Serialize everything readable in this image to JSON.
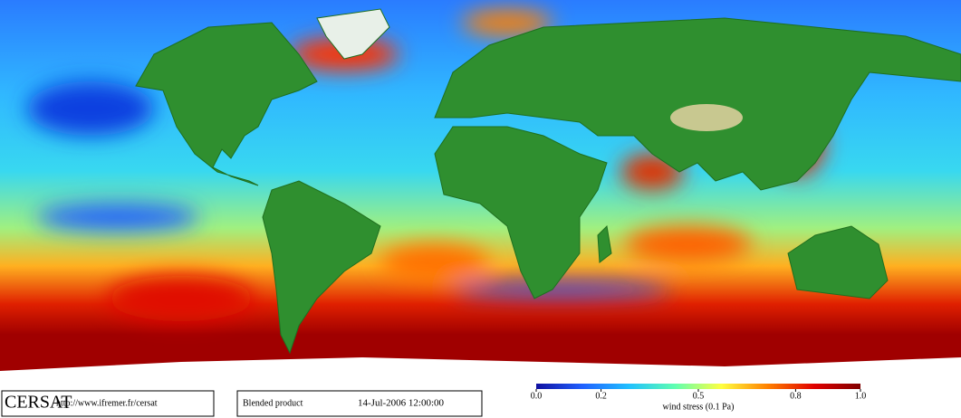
{
  "logo": "CERSAT",
  "url": "http://www.ifremer.fr/cersat",
  "product": "Blended product",
  "date": "14-Jul-2006 12:00:00",
  "colorbar": {
    "label": "wind stress (0.1 Pa)",
    "range": [
      0,
      1
    ],
    "ticks": [
      {
        "value": 0,
        "label": "0.0"
      },
      0.2,
      0.5,
      0.8,
      {
        "value": 1,
        "label": "1.0"
      }
    ],
    "colors": [
      "#1010a0",
      "#2060ff",
      "#20c0ff",
      "#60ffb0",
      "#ffff40",
      "#ff8000",
      "#e00000",
      "#800000"
    ]
  }
}
